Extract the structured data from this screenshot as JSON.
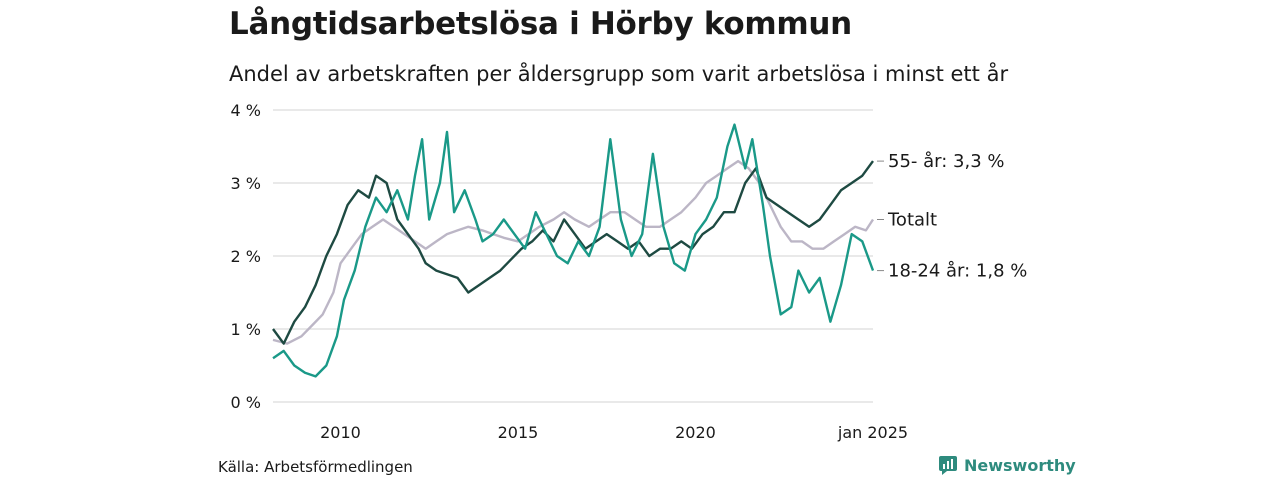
{
  "title": "Långtidsarbetslösa i Hörby kommun",
  "subtitle": "Andel av arbetskraften per åldersgrupp som varit arbetslösa i minst ett år",
  "source": "Källa: Arbetsförmedlingen",
  "brand": {
    "name": "Newsworthy",
    "icon": "newsworthy-logo-icon",
    "color": "#2e8b7e"
  },
  "chart_data": {
    "type": "line",
    "x_ticks": [
      {
        "x": 2010.0,
        "label": "2010"
      },
      {
        "x": 2015.0,
        "label": "2015"
      },
      {
        "x": 2020.0,
        "label": "2020"
      },
      {
        "x": 2025.0,
        "label": "jan 2025"
      }
    ],
    "y_ticks": [
      {
        "v": 0,
        "label": "0 %"
      },
      {
        "v": 1,
        "label": "1 %"
      },
      {
        "v": 2,
        "label": "2 %"
      },
      {
        "v": 3,
        "label": "3 %"
      },
      {
        "v": 4,
        "label": "4 %"
      }
    ],
    "xlim": [
      2008.1,
      2025.0
    ],
    "ylim": [
      0,
      4
    ],
    "grid": "horizontal",
    "series": [
      {
        "name": "Totalt",
        "end_label": "Totalt",
        "color": "#bcb6c6",
        "points": [
          [
            2008.1,
            0.85
          ],
          [
            2008.5,
            0.8
          ],
          [
            2008.9,
            0.9
          ],
          [
            2009.2,
            1.05
          ],
          [
            2009.5,
            1.2
          ],
          [
            2009.8,
            1.5
          ],
          [
            2010.0,
            1.9
          ],
          [
            2010.3,
            2.1
          ],
          [
            2010.6,
            2.3
          ],
          [
            2010.9,
            2.4
          ],
          [
            2011.2,
            2.5
          ],
          [
            2011.5,
            2.4
          ],
          [
            2011.8,
            2.3
          ],
          [
            2012.1,
            2.2
          ],
          [
            2012.4,
            2.1
          ],
          [
            2012.7,
            2.2
          ],
          [
            2013.0,
            2.3
          ],
          [
            2013.3,
            2.35
          ],
          [
            2013.6,
            2.4
          ],
          [
            2014.0,
            2.35
          ],
          [
            2014.3,
            2.3
          ],
          [
            2014.6,
            2.25
          ],
          [
            2015.0,
            2.2
          ],
          [
            2015.3,
            2.3
          ],
          [
            2015.6,
            2.4
          ],
          [
            2016.0,
            2.5
          ],
          [
            2016.3,
            2.6
          ],
          [
            2016.6,
            2.5
          ],
          [
            2017.0,
            2.4
          ],
          [
            2017.3,
            2.5
          ],
          [
            2017.6,
            2.6
          ],
          [
            2018.0,
            2.6
          ],
          [
            2018.3,
            2.5
          ],
          [
            2018.6,
            2.4
          ],
          [
            2019.0,
            2.4
          ],
          [
            2019.3,
            2.5
          ],
          [
            2019.6,
            2.6
          ],
          [
            2020.0,
            2.8
          ],
          [
            2020.3,
            3.0
          ],
          [
            2020.6,
            3.1
          ],
          [
            2020.9,
            3.2
          ],
          [
            2021.2,
            3.3
          ],
          [
            2021.5,
            3.2
          ],
          [
            2021.8,
            3.0
          ],
          [
            2022.1,
            2.7
          ],
          [
            2022.4,
            2.4
          ],
          [
            2022.7,
            2.2
          ],
          [
            2023.0,
            2.2
          ],
          [
            2023.3,
            2.1
          ],
          [
            2023.6,
            2.1
          ],
          [
            2023.9,
            2.2
          ],
          [
            2024.2,
            2.3
          ],
          [
            2024.5,
            2.4
          ],
          [
            2024.8,
            2.35
          ],
          [
            2025.0,
            2.5
          ]
        ]
      },
      {
        "name": "55- år",
        "end_label": "55- år: 3,3 %",
        "color": "#1e4a42",
        "points": [
          [
            2008.1,
            1.0
          ],
          [
            2008.4,
            0.8
          ],
          [
            2008.7,
            1.1
          ],
          [
            2009.0,
            1.3
          ],
          [
            2009.3,
            1.6
          ],
          [
            2009.6,
            2.0
          ],
          [
            2009.9,
            2.3
          ],
          [
            2010.2,
            2.7
          ],
          [
            2010.5,
            2.9
          ],
          [
            2010.8,
            2.8
          ],
          [
            2011.0,
            3.1
          ],
          [
            2011.3,
            3.0
          ],
          [
            2011.6,
            2.5
          ],
          [
            2011.9,
            2.3
          ],
          [
            2012.2,
            2.1
          ],
          [
            2012.4,
            1.9
          ],
          [
            2012.7,
            1.8
          ],
          [
            2013.0,
            1.75
          ],
          [
            2013.3,
            1.7
          ],
          [
            2013.6,
            1.5
          ],
          [
            2013.9,
            1.6
          ],
          [
            2014.2,
            1.7
          ],
          [
            2014.5,
            1.8
          ],
          [
            2014.8,
            1.95
          ],
          [
            2015.1,
            2.1
          ],
          [
            2015.4,
            2.2
          ],
          [
            2015.7,
            2.35
          ],
          [
            2016.0,
            2.2
          ],
          [
            2016.3,
            2.5
          ],
          [
            2016.6,
            2.3
          ],
          [
            2016.9,
            2.1
          ],
          [
            2017.2,
            2.2
          ],
          [
            2017.5,
            2.3
          ],
          [
            2017.8,
            2.2
          ],
          [
            2018.1,
            2.1
          ],
          [
            2018.4,
            2.2
          ],
          [
            2018.7,
            2.0
          ],
          [
            2019.0,
            2.1
          ],
          [
            2019.3,
            2.1
          ],
          [
            2019.6,
            2.2
          ],
          [
            2019.9,
            2.1
          ],
          [
            2020.2,
            2.3
          ],
          [
            2020.5,
            2.4
          ],
          [
            2020.8,
            2.6
          ],
          [
            2021.1,
            2.6
          ],
          [
            2021.4,
            3.0
          ],
          [
            2021.7,
            3.2
          ],
          [
            2022.0,
            2.8
          ],
          [
            2022.3,
            2.7
          ],
          [
            2022.6,
            2.6
          ],
          [
            2022.9,
            2.5
          ],
          [
            2023.2,
            2.4
          ],
          [
            2023.5,
            2.5
          ],
          [
            2023.8,
            2.7
          ],
          [
            2024.1,
            2.9
          ],
          [
            2024.4,
            3.0
          ],
          [
            2024.7,
            3.1
          ],
          [
            2025.0,
            3.3
          ]
        ]
      },
      {
        "name": "18-24 år",
        "end_label": "18-24 år: 1,8 %",
        "color": "#1a9988",
        "points": [
          [
            2008.1,
            0.6
          ],
          [
            2008.4,
            0.7
          ],
          [
            2008.7,
            0.5
          ],
          [
            2009.0,
            0.4
          ],
          [
            2009.3,
            0.35
          ],
          [
            2009.6,
            0.5
          ],
          [
            2009.9,
            0.9
          ],
          [
            2010.1,
            1.4
          ],
          [
            2010.4,
            1.8
          ],
          [
            2010.7,
            2.4
          ],
          [
            2011.0,
            2.8
          ],
          [
            2011.3,
            2.6
          ],
          [
            2011.6,
            2.9
          ],
          [
            2011.9,
            2.5
          ],
          [
            2012.1,
            3.1
          ],
          [
            2012.3,
            3.6
          ],
          [
            2012.5,
            2.5
          ],
          [
            2012.8,
            3.0
          ],
          [
            2013.0,
            3.7
          ],
          [
            2013.2,
            2.6
          ],
          [
            2013.5,
            2.9
          ],
          [
            2013.8,
            2.5
          ],
          [
            2014.0,
            2.2
          ],
          [
            2014.3,
            2.3
          ],
          [
            2014.6,
            2.5
          ],
          [
            2014.9,
            2.3
          ],
          [
            2015.2,
            2.1
          ],
          [
            2015.5,
            2.6
          ],
          [
            2015.8,
            2.3
          ],
          [
            2016.1,
            2.0
          ],
          [
            2016.4,
            1.9
          ],
          [
            2016.7,
            2.2
          ],
          [
            2017.0,
            2.0
          ],
          [
            2017.3,
            2.4
          ],
          [
            2017.6,
            3.6
          ],
          [
            2017.9,
            2.5
          ],
          [
            2018.2,
            2.0
          ],
          [
            2018.5,
            2.3
          ],
          [
            2018.8,
            3.4
          ],
          [
            2019.1,
            2.4
          ],
          [
            2019.4,
            1.9
          ],
          [
            2019.7,
            1.8
          ],
          [
            2020.0,
            2.3
          ],
          [
            2020.3,
            2.5
          ],
          [
            2020.6,
            2.8
          ],
          [
            2020.9,
            3.5
          ],
          [
            2021.1,
            3.8
          ],
          [
            2021.4,
            3.2
          ],
          [
            2021.6,
            3.6
          ],
          [
            2021.9,
            2.7
          ],
          [
            2022.1,
            2.0
          ],
          [
            2022.4,
            1.2
          ],
          [
            2022.7,
            1.3
          ],
          [
            2022.9,
            1.8
          ],
          [
            2023.2,
            1.5
          ],
          [
            2023.5,
            1.7
          ],
          [
            2023.8,
            1.1
          ],
          [
            2024.1,
            1.6
          ],
          [
            2024.4,
            2.3
          ],
          [
            2024.7,
            2.2
          ],
          [
            2025.0,
            1.8
          ]
        ]
      }
    ]
  }
}
